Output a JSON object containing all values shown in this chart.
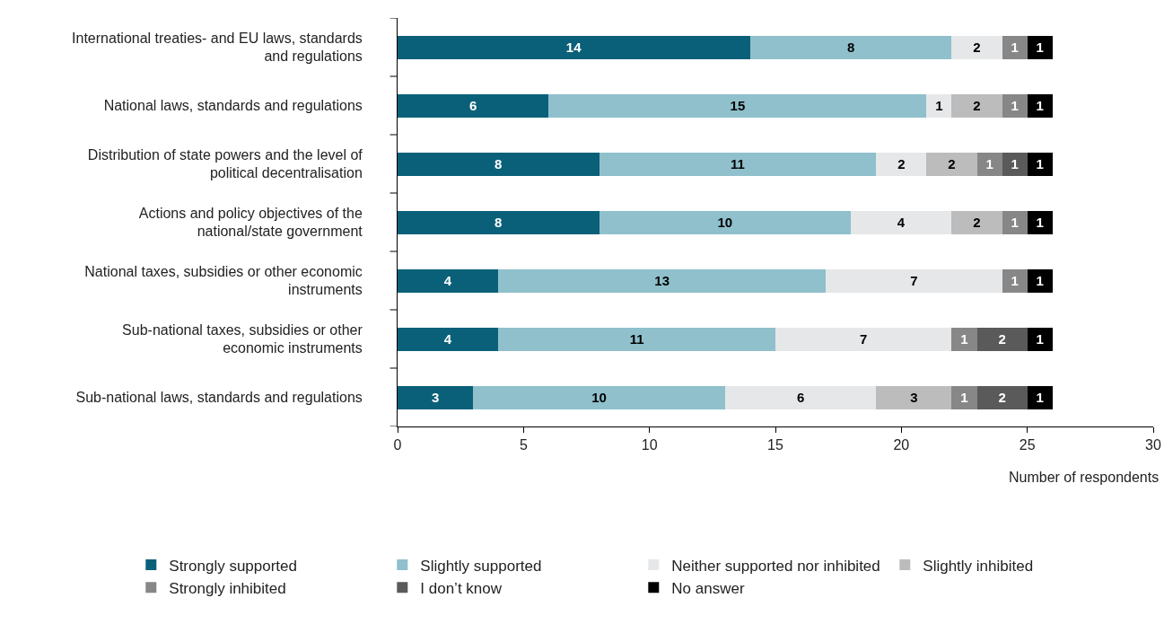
{
  "chart_data": {
    "type": "bar",
    "orientation": "horizontal",
    "stacked": true,
    "data_labels": true,
    "grid": false,
    "legend": "bottom",
    "xlabel": "Number of respondents",
    "categories": [
      "International treaties- and EU laws, standards and regulations",
      "National laws, standards and regulations",
      "Distribution of state powers and the level of political decentralisation",
      "Actions and policy objectives of the national/state government",
      "National taxes, subsidies or other economic instruments",
      "Sub-national taxes, subsidies or other economic instruments",
      "Sub-national laws, standards and regulations"
    ],
    "xlim": [
      0,
      30
    ],
    "xticks": [
      0,
      5,
      10,
      15,
      20,
      25,
      30
    ],
    "series": [
      {
        "name": "Strongly supported",
        "color": "#0b6079",
        "values": [
          14,
          6,
          8,
          8,
          4,
          4,
          3
        ]
      },
      {
        "name": "Slightly supported",
        "color": "#8fc0cc",
        "values": [
          8,
          15,
          11,
          10,
          13,
          11,
          10
        ]
      },
      {
        "name": "Neither supported nor inhibited",
        "color": "#e6e7e8",
        "values": [
          2,
          1,
          2,
          4,
          7,
          7,
          6
        ]
      },
      {
        "name": "Slightly inhibited",
        "color": "#bcbcbc",
        "values": [
          null,
          2,
          2,
          2,
          null,
          null,
          3
        ]
      },
      {
        "name": "Strongly inhibited",
        "color": "#878787",
        "values": [
          1,
          1,
          1,
          1,
          1,
          1,
          1
        ]
      },
      {
        "name": "I don’t know",
        "color": "#5a5a5a",
        "values": [
          null,
          null,
          1,
          null,
          null,
          2,
          2
        ]
      },
      {
        "name": "No answer",
        "color": "#000000",
        "values": [
          1,
          1,
          1,
          1,
          1,
          1,
          1
        ]
      }
    ]
  }
}
